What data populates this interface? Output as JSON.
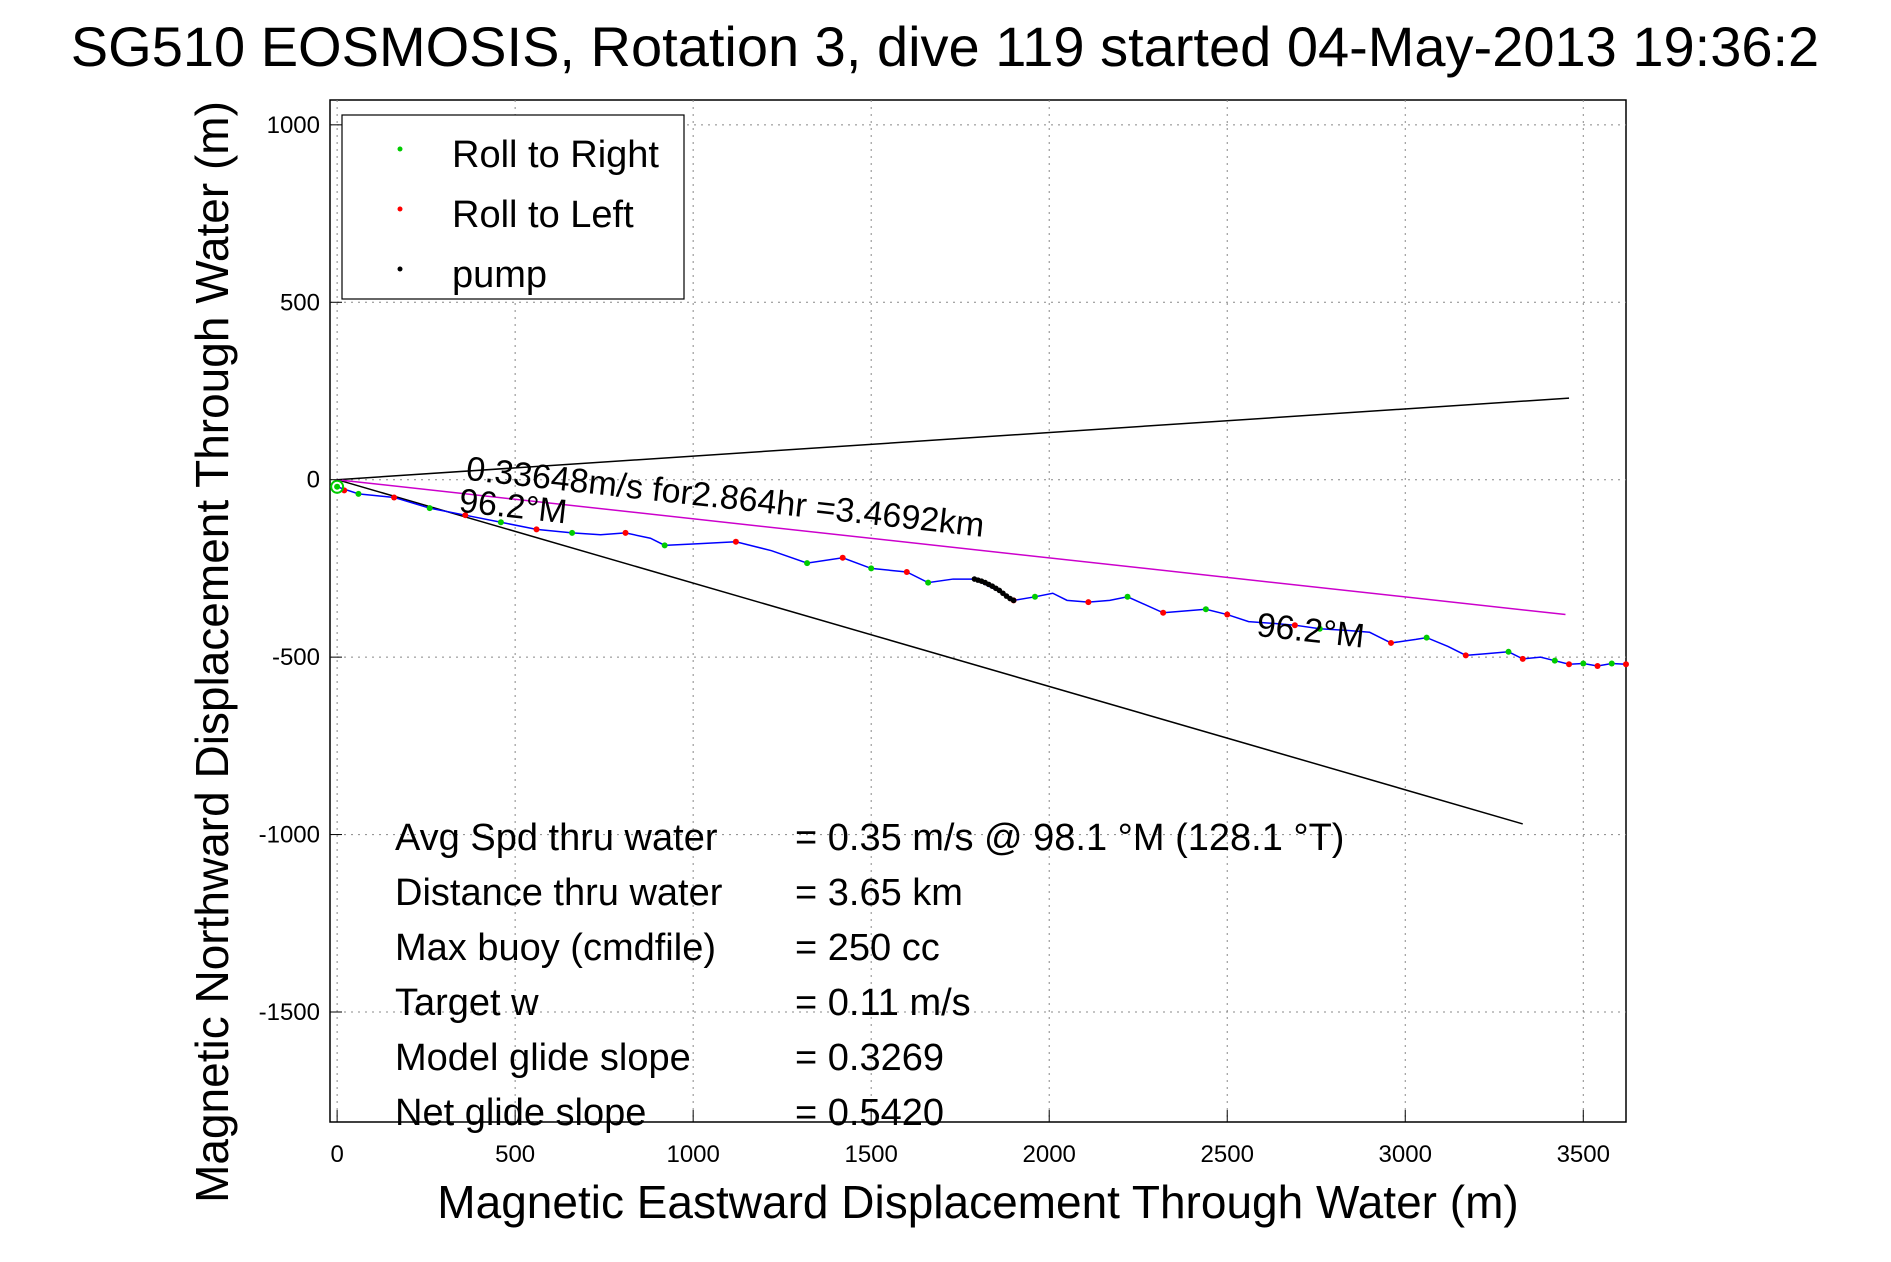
{
  "chart_data": {
    "type": "scatter",
    "title": "SG510 EOSMOSIS, Rotation 3, dive 119 started 04-May-2013 19:36:2",
    "xlabel": "Magnetic Eastward Displacement Through Water (m)",
    "ylabel": "Magnetic Northward Displacement Through Water (m)",
    "xlim": [
      -20,
      3620
    ],
    "ylim": [
      -1810,
      1070
    ],
    "xticks": [
      0,
      500,
      1000,
      1500,
      2000,
      2500,
      3000,
      3500
    ],
    "yticks": [
      1000,
      500,
      0,
      -500,
      -1000,
      -1500
    ],
    "grid": true,
    "legend_position": "top-left",
    "legend": [
      {
        "label": "Roll to Right",
        "color": "#00cc00"
      },
      {
        "label": "Roll to Left",
        "color": "#ff0000"
      },
      {
        "label": "pump",
        "color": "#000000"
      }
    ],
    "track": {
      "name": "",
      "color": "#0000ff",
      "x": [
        0,
        60,
        160,
        260,
        360,
        460,
        560,
        660,
        740,
        810,
        880,
        920,
        1020,
        1120,
        1220,
        1320,
        1420,
        1500,
        1600,
        1660,
        1730,
        1790,
        1830,
        1870,
        1900,
        1960,
        2010,
        2050,
        2110,
        2170,
        2220,
        2320,
        2380,
        2440,
        2500,
        2560,
        2630,
        2690,
        2760,
        2840,
        2900,
        2960,
        3030,
        3060,
        3120,
        3170,
        3230,
        3290,
        3330,
        3380,
        3420,
        3460,
        3500,
        3540,
        3580,
        3620
      ],
      "y": [
        -20,
        -40,
        -50,
        -80,
        -100,
        -120,
        -140,
        -150,
        -155,
        -150,
        -165,
        -185,
        -180,
        -175,
        -200,
        -235,
        -220,
        -250,
        -260,
        -290,
        -280,
        -280,
        -300,
        -320,
        -340,
        -330,
        -320,
        -340,
        -345,
        -340,
        -330,
        -375,
        -370,
        -365,
        -380,
        -400,
        -405,
        -410,
        -420,
        -425,
        -430,
        -460,
        -450,
        -445,
        -470,
        -495,
        -490,
        -485,
        -505,
        -500,
        -510,
        -520,
        -518,
        -525,
        -518,
        -520
      ]
    },
    "roll_right_points": {
      "x": [
        0,
        60,
        260,
        460,
        660,
        920,
        1320,
        1500,
        1660,
        1960,
        2220,
        2440,
        2760,
        3060,
        3290,
        3420,
        3500,
        3580
      ],
      "y": [
        -20,
        -40,
        -80,
        -120,
        -150,
        -185,
        -235,
        -250,
        -290,
        -330,
        -330,
        -365,
        -420,
        -445,
        -485,
        -510,
        -518,
        -518
      ]
    },
    "roll_left_points": {
      "x": [
        20,
        160,
        360,
        560,
        810,
        1120,
        1420,
        1600,
        1900,
        2110,
        2320,
        2500,
        2690,
        2960,
        3170,
        3330,
        3460,
        3540,
        3620
      ],
      "y": [
        -30,
        -50,
        -100,
        -140,
        -150,
        -175,
        -220,
        -260,
        -340,
        -345,
        -375,
        -380,
        -410,
        -460,
        -495,
        -505,
        -520,
        -525,
        -520
      ]
    },
    "pump_points": {
      "x": [
        1790,
        1800,
        1810,
        1820,
        1830,
        1840,
        1850,
        1860,
        1870,
        1880,
        1890,
        1900
      ],
      "y": [
        -280,
        -283,
        -286,
        -290,
        -295,
        -300,
        -306,
        -312,
        -320,
        -328,
        -335,
        -340
      ]
    },
    "reference_lines": [
      {
        "name": "upper-bound",
        "color": "#000000",
        "x": [
          0,
          3460
        ],
        "y": [
          0,
          230
        ]
      },
      {
        "name": "lower-bound",
        "color": "#000000",
        "x": [
          0,
          3330
        ],
        "y": [
          0,
          -970
        ]
      },
      {
        "name": "net-displacement",
        "color": "#cc00cc",
        "x": [
          0,
          3450
        ],
        "y": [
          0,
          -380
        ]
      }
    ],
    "annotations": [
      {
        "text": "0.33648m/s for2.864hr =3.4692km",
        "x": 360,
        "y": 0,
        "angle": 6.3
      },
      {
        "text": "96.2°M",
        "x": 340,
        "y": -90,
        "angle": 6.3
      },
      {
        "text": "96.2°M",
        "x": 2580,
        "y": -440,
        "angle": 6.3
      }
    ],
    "stats": [
      {
        "label": "Avg Spd thru water",
        "value": "=  0.35 m/s @  98.1 °M (128.1 °T)"
      },
      {
        "label": "Distance thru water",
        "value": "=  3.65 km"
      },
      {
        "label": "Max buoy (cmdfile)",
        "value": "= 250 cc"
      },
      {
        "label": "Target w",
        "value": "= 0.11 m/s"
      },
      {
        "label": "Model glide slope",
        "value": "= 0.3269"
      },
      {
        "label": "Net glide slope",
        "value": "= 0.5420"
      }
    ]
  }
}
